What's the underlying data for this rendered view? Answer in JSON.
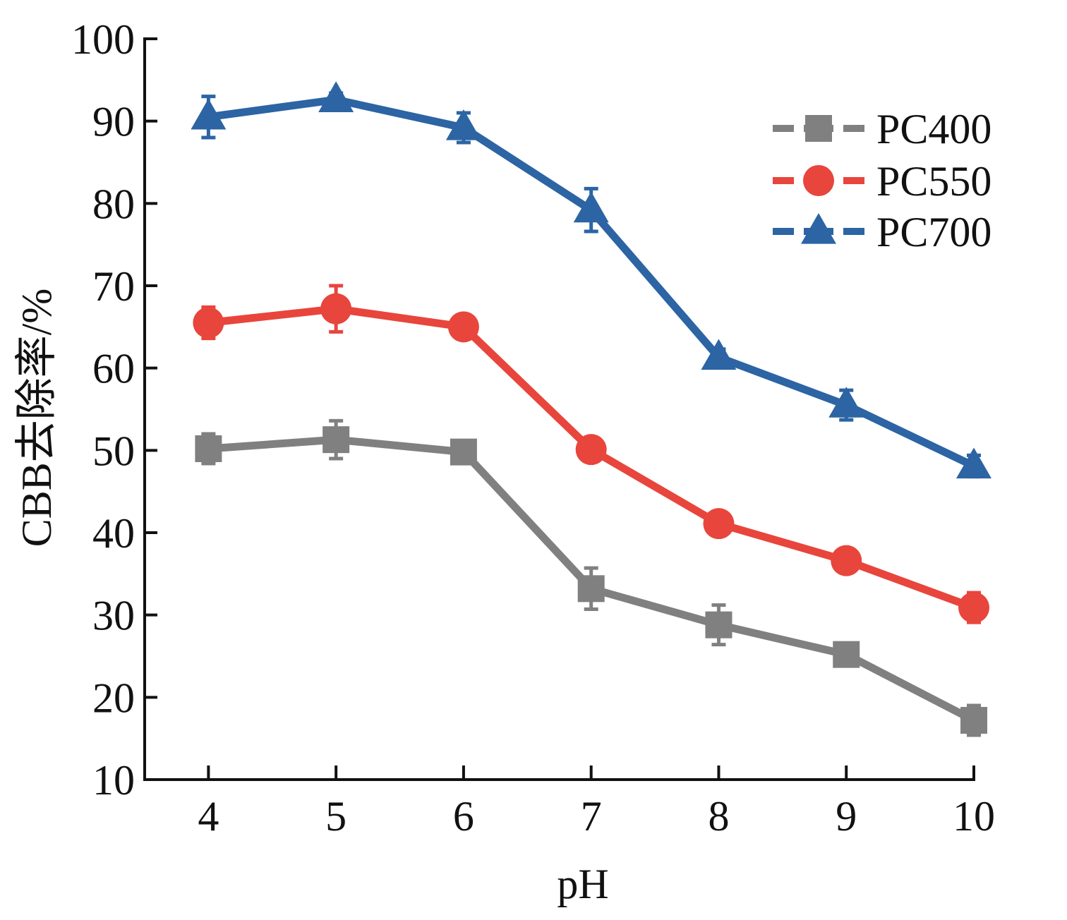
{
  "chart_data": {
    "type": "line",
    "title": "",
    "xlabel": "pH",
    "ylabel": "CBB去除率/%",
    "x": [
      4,
      5,
      6,
      7,
      8,
      9,
      10
    ],
    "xlim": [
      3.5,
      10
    ],
    "ylim": [
      10,
      100
    ],
    "xticks": [
      4,
      5,
      6,
      7,
      8,
      9,
      10
    ],
    "yticks": [
      10,
      20,
      30,
      40,
      50,
      60,
      70,
      80,
      90,
      100
    ],
    "grid": false,
    "legend_position": "top-right",
    "series": [
      {
        "name": "PC400",
        "color": "#808080",
        "marker": "square",
        "values": [
          50.2,
          51.3,
          49.8,
          33.2,
          28.8,
          25.2,
          17.2
        ],
        "errors": [
          1.8,
          2.3,
          1.2,
          2.5,
          2.4,
          1.2,
          1.8
        ]
      },
      {
        "name": "PC550",
        "color": "#E8453C",
        "marker": "circle",
        "values": [
          65.5,
          67.2,
          65.0,
          50.1,
          41.1,
          36.6,
          30.9
        ],
        "errors": [
          1.9,
          2.8,
          1.0,
          0.5,
          1.3,
          0.5,
          1.8
        ]
      },
      {
        "name": "PC700",
        "color": "#2C64A4",
        "marker": "triangle",
        "values": [
          90.5,
          92.6,
          89.2,
          79.2,
          61.3,
          55.5,
          48.1
        ],
        "errors": [
          2.5,
          0.8,
          1.8,
          2.6,
          1.0,
          1.8,
          1.3
        ]
      }
    ]
  }
}
